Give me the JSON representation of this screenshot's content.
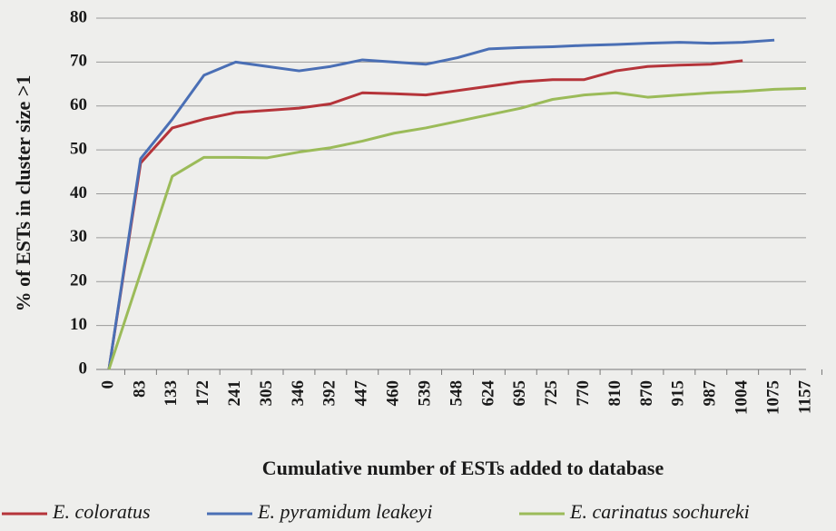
{
  "chart_data": {
    "type": "line",
    "x_label": "Cumulative number of ESTs added to database",
    "y_label": "% of ESTs in cluster size >1",
    "categories": [
      "0",
      "83",
      "133",
      "172",
      "241",
      "305",
      "346",
      "392",
      "447",
      "460",
      "539",
      "548",
      "624",
      "695",
      "725",
      "770",
      "810",
      "870",
      "915",
      "987",
      "1004",
      "1075",
      "1157"
    ],
    "series": [
      {
        "name": "E. coloratus",
        "color": "#b5343a",
        "values": [
          0,
          47,
          55,
          57,
          58.5,
          59,
          59.5,
          60.5,
          63,
          62.8,
          62.5,
          63.5,
          64.5,
          65.5,
          66,
          66,
          68,
          69,
          69.3,
          69.5,
          70.3,
          null,
          null
        ]
      },
      {
        "name": "E. pyramidum leakeyi",
        "color": "#4a6fb5",
        "values": [
          0,
          48,
          57,
          67,
          70,
          69,
          68,
          69,
          70.5,
          70,
          69.5,
          71,
          73,
          73.3,
          73.5,
          73.8,
          74,
          74.3,
          74.5,
          74.3,
          74.5,
          75,
          null
        ]
      },
      {
        "name": "E. carinatus sochureki",
        "color": "#9bbb59",
        "values": [
          0,
          22,
          44,
          48.3,
          48.3,
          48.2,
          49.5,
          50.5,
          52,
          53.8,
          55,
          56.5,
          58,
          59.5,
          61.5,
          62.5,
          63,
          62,
          62.5,
          63,
          63.3,
          63.8,
          64
        ]
      }
    ],
    "ylim": [
      0,
      80
    ],
    "yticks": [
      0,
      10,
      20,
      30,
      40,
      50,
      60,
      70,
      80
    ],
    "grid": true
  }
}
